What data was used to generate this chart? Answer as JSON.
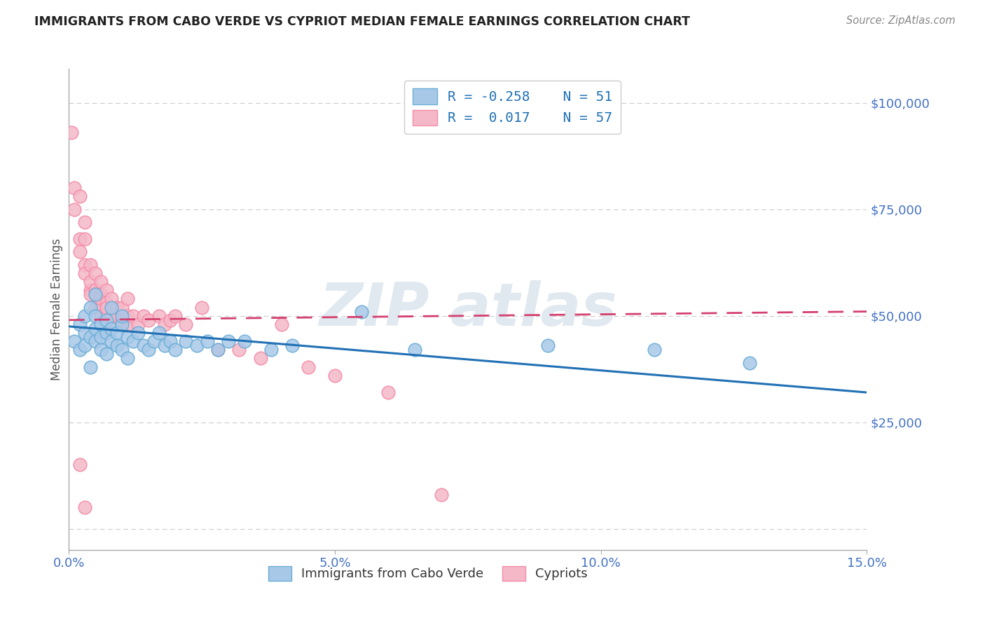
{
  "title": "IMMIGRANTS FROM CABO VERDE VS CYPRIOT MEDIAN FEMALE EARNINGS CORRELATION CHART",
  "source": "Source: ZipAtlas.com",
  "ylabel": "Median Female Earnings",
  "xlim": [
    0.0,
    0.15
  ],
  "ylim": [
    -5000,
    108000
  ],
  "yticks": [
    0,
    25000,
    50000,
    75000,
    100000
  ],
  "xticks": [
    0.0,
    0.05,
    0.1,
    0.15
  ],
  "xtick_labels": [
    "0.0%",
    "5.0%",
    "10.0%",
    "15.0%"
  ],
  "legend_label1": "Immigrants from Cabo Verde",
  "legend_label2": "Cypriots",
  "legend_r1": "R = -0.258",
  "legend_n1": "N = 51",
  "legend_r2": "R =  0.017",
  "legend_n2": "N = 57",
  "blue_scatter_x": [
    0.001,
    0.002,
    0.002,
    0.003,
    0.003,
    0.003,
    0.004,
    0.004,
    0.004,
    0.005,
    0.005,
    0.005,
    0.005,
    0.006,
    0.006,
    0.006,
    0.007,
    0.007,
    0.007,
    0.008,
    0.008,
    0.008,
    0.009,
    0.009,
    0.01,
    0.01,
    0.01,
    0.011,
    0.011,
    0.012,
    0.013,
    0.014,
    0.015,
    0.016,
    0.017,
    0.018,
    0.019,
    0.02,
    0.022,
    0.024,
    0.026,
    0.028,
    0.03,
    0.033,
    0.038,
    0.042,
    0.055,
    0.065,
    0.09,
    0.11,
    0.128
  ],
  "blue_scatter_y": [
    44000,
    48000,
    42000,
    46000,
    43000,
    50000,
    52000,
    45000,
    38000,
    47000,
    44000,
    50000,
    55000,
    42000,
    48000,
    45000,
    46000,
    41000,
    49000,
    44000,
    47000,
    52000,
    43000,
    46000,
    48000,
    42000,
    50000,
    45000,
    40000,
    44000,
    46000,
    43000,
    42000,
    44000,
    46000,
    43000,
    44000,
    42000,
    44000,
    43000,
    44000,
    42000,
    44000,
    44000,
    42000,
    43000,
    51000,
    42000,
    43000,
    42000,
    39000
  ],
  "pink_scatter_x": [
    0.0005,
    0.001,
    0.001,
    0.002,
    0.002,
    0.002,
    0.003,
    0.003,
    0.003,
    0.003,
    0.004,
    0.004,
    0.004,
    0.004,
    0.005,
    0.005,
    0.005,
    0.005,
    0.006,
    0.006,
    0.006,
    0.006,
    0.006,
    0.007,
    0.007,
    0.007,
    0.007,
    0.008,
    0.008,
    0.008,
    0.009,
    0.009,
    0.01,
    0.01,
    0.011,
    0.011,
    0.011,
    0.012,
    0.013,
    0.014,
    0.015,
    0.017,
    0.018,
    0.019,
    0.02,
    0.022,
    0.025,
    0.028,
    0.032,
    0.036,
    0.04,
    0.045,
    0.05,
    0.06,
    0.07,
    0.002,
    0.003
  ],
  "pink_scatter_y": [
    93000,
    80000,
    75000,
    68000,
    65000,
    78000,
    62000,
    68000,
    72000,
    60000,
    56000,
    62000,
    58000,
    55000,
    52000,
    56000,
    60000,
    55000,
    52000,
    55000,
    58000,
    50000,
    54000,
    50000,
    53000,
    56000,
    52000,
    50000,
    54000,
    48000,
    50000,
    52000,
    49000,
    52000,
    50000,
    54000,
    48000,
    50000,
    48000,
    50000,
    49000,
    50000,
    48000,
    49000,
    50000,
    48000,
    52000,
    42000,
    42000,
    40000,
    48000,
    38000,
    36000,
    32000,
    8000,
    15000,
    5000
  ],
  "blue_line_x": [
    0.0,
    0.15
  ],
  "blue_line_y": [
    47500,
    32000
  ],
  "pink_line_x": [
    0.0,
    0.15
  ],
  "pink_line_y": [
    49000,
    51000
  ],
  "blue_color": "#a8c8e8",
  "pink_color": "#f4b8c8",
  "blue_edge_color": "#6baed6",
  "pink_edge_color": "#f48ca8",
  "blue_line_color": "#2171b5",
  "pink_line_color": "#d44070",
  "grid_color": "#cccccc",
  "title_color": "#222222",
  "axis_label_color": "#555555",
  "tick_color": "#4472c4",
  "source_color": "#888888",
  "watermark": "ZIP atlas",
  "watermark_color": "#e0e8f0"
}
